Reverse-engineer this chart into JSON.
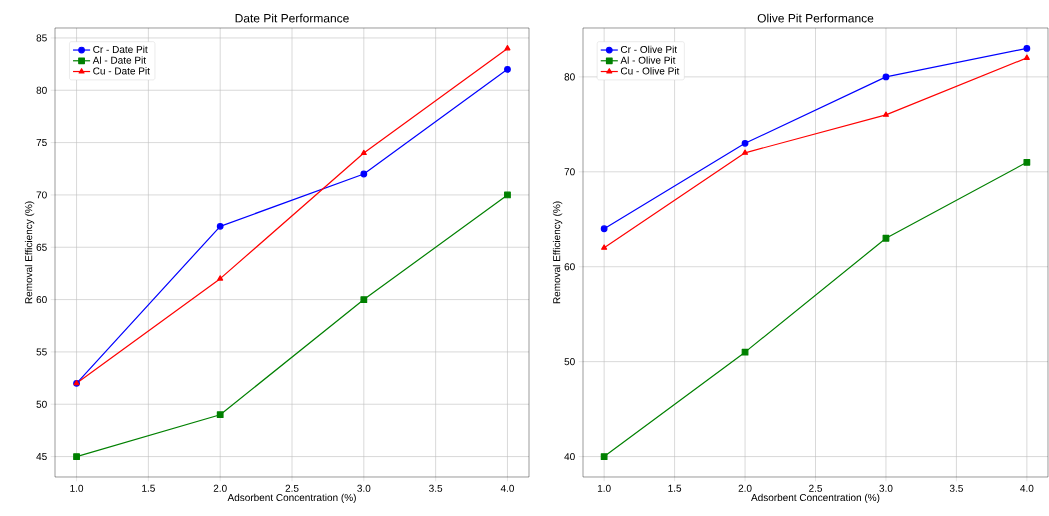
{
  "chart_data": [
    {
      "type": "line",
      "title": "Date Pit Performance",
      "xlabel": "Adsorbent Concentration (%)",
      "ylabel": "Removal Efficiency (%)",
      "x": [
        1,
        2,
        3,
        4
      ],
      "series": [
        {
          "name": "Cr - Date Pit",
          "color": "#0000ff",
          "marker": "circle",
          "values": [
            52,
            67,
            72,
            82
          ]
        },
        {
          "name": "Al - Date Pit",
          "color": "#008000",
          "marker": "square",
          "values": [
            45,
            49,
            60,
            70
          ]
        },
        {
          "name": "Cu - Date Pit",
          "color": "#ff0000",
          "marker": "triangle",
          "values": [
            52,
            62,
            74,
            84
          ]
        }
      ],
      "xlim": [
        0.85,
        4.15
      ],
      "ylim": [
        43.05,
        85.95
      ],
      "xticks": [
        {
          "value": 1,
          "label": "1.0"
        },
        {
          "value": 1.5,
          "label": "1.5"
        },
        {
          "value": 2,
          "label": "2.0"
        },
        {
          "value": 2.5,
          "label": "2.5"
        },
        {
          "value": 3,
          "label": "3.0"
        },
        {
          "value": 3.5,
          "label": "3.5"
        },
        {
          "value": 4,
          "label": "4.0"
        }
      ],
      "yticks": [
        45,
        50,
        55,
        60,
        65,
        70,
        75,
        80,
        85
      ],
      "grid": true,
      "legend": "top left",
      "line_style": "solid"
    },
    {
      "type": "line",
      "title": "Olive Pit Performance",
      "xlabel": "Adsorbent Concentration (%)",
      "ylabel": "Removal Efficiency (%)",
      "x": [
        1,
        2,
        3,
        4
      ],
      "series": [
        {
          "name": "Cr - Olive Pit",
          "color": "#0000ff",
          "marker": "circle",
          "values": [
            64,
            73,
            80,
            83
          ]
        },
        {
          "name": "Al - Olive Pit",
          "color": "#008000",
          "marker": "square",
          "values": [
            40,
            51,
            63,
            71
          ]
        },
        {
          "name": "Cu - Olive Pit",
          "color": "#ff0000",
          "marker": "triangle",
          "values": [
            62,
            72,
            76,
            82
          ]
        }
      ],
      "xlim": [
        0.85,
        4.15
      ],
      "ylim": [
        37.85,
        85.15
      ],
      "xticks": [
        {
          "value": 1,
          "label": "1.0"
        },
        {
          "value": 1.5,
          "label": "1.5"
        },
        {
          "value": 2,
          "label": "2.0"
        },
        {
          "value": 2.5,
          "label": "2.5"
        },
        {
          "value": 3,
          "label": "3.0"
        },
        {
          "value": 3.5,
          "label": "3.5"
        },
        {
          "value": 4,
          "label": "4.0"
        }
      ],
      "yticks": [
        40,
        50,
        60,
        70,
        80
      ],
      "grid": true,
      "legend": "top left",
      "line_style": "solid"
    }
  ]
}
